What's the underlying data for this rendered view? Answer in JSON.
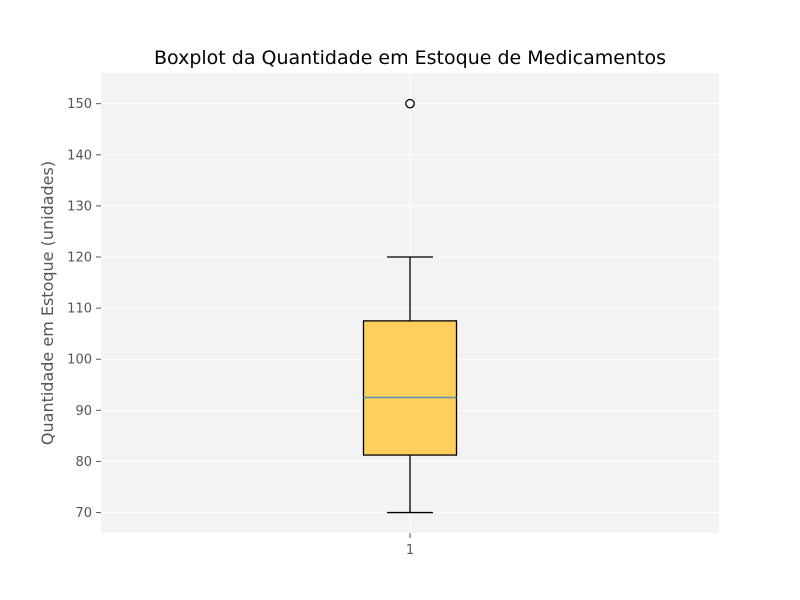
{
  "chart_data": {
    "type": "boxplot",
    "title": "Boxplot da Quantidade em Estoque de Medicamentos",
    "xlabel": "",
    "ylabel": "Quantidade em Estoque (unidades)",
    "categories": [
      "1"
    ],
    "ylim": [
      66,
      156
    ],
    "yticks": [
      70,
      80,
      90,
      100,
      110,
      120,
      130,
      140,
      150
    ],
    "grid": true,
    "boxes": [
      {
        "category": "1",
        "whisker_low": 70,
        "q1": 81.25,
        "median": 92.5,
        "q3": 107.5,
        "whisker_high": 120,
        "outliers": [
          150
        ]
      }
    ],
    "colors": {
      "plot_background": "#f3f3f3",
      "grid": "#ffffff",
      "box_fill": "#ffcf5c",
      "box_edge": "#000000",
      "median_line": "#5a8fb0",
      "whisker": "#000000",
      "tick_text": "#555555"
    }
  }
}
